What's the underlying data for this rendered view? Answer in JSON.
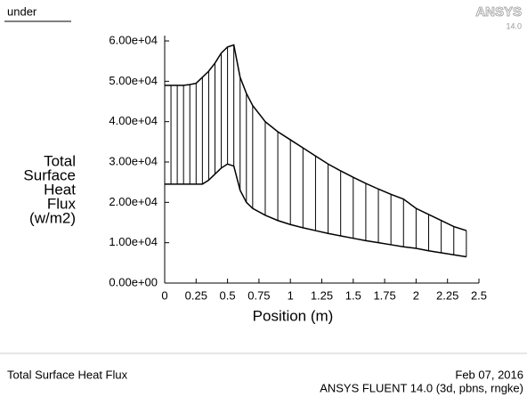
{
  "chart_data": {
    "type": "hatched-band",
    "brand": "ANSYS",
    "version": "14.0",
    "footer_title": "Total Surface Heat Flux",
    "footer_date": "Feb 07, 2016",
    "footer_solver": "ANSYS FLUENT 14.0 (3d, pbns, rngke)",
    "xlabel": "Position (m)",
    "ylabel": [
      "Total",
      "Surface",
      "Heat",
      "Flux",
      "(w/m2)"
    ],
    "color": "#000000",
    "x": [
      0,
      0.05,
      0.1,
      0.15,
      0.2,
      0.25,
      0.3,
      0.35,
      0.4,
      0.45,
      0.5,
      0.55,
      0.6,
      0.65,
      0.7,
      0.8,
      0.9,
      1.0,
      1.1,
      1.2,
      1.3,
      1.4,
      1.5,
      1.6,
      1.7,
      1.8,
      1.9,
      2.0,
      2.1,
      2.2,
      2.3,
      2.4
    ],
    "series": [
      {
        "name": "under",
        "values": [
          49000,
          49000,
          49000,
          49000,
          49200,
          49500,
          51000,
          52500,
          54500,
          57000,
          58500,
          59000,
          51000,
          47000,
          44000,
          40000,
          37500,
          35500,
          33500,
          31500,
          29500,
          27800,
          26200,
          24700,
          23300,
          22000,
          20800,
          18500,
          17000,
          15500,
          14000,
          13000
        ]
      },
      {
        "values": [
          24500,
          24500,
          24500,
          24500,
          24500,
          24500,
          24500,
          25500,
          27000,
          28500,
          29500,
          29000,
          23000,
          20000,
          18500,
          16800,
          15500,
          14500,
          13700,
          13000,
          12300,
          11700,
          11100,
          10500,
          10000,
          9500,
          9000,
          8600,
          8000,
          7500,
          7000,
          6500
        ]
      }
    ],
    "xlim": [
      0,
      2.5
    ],
    "xticks": [
      0,
      0.25,
      0.5,
      0.75,
      1,
      1.25,
      1.5,
      1.75,
      2,
      2.25,
      2.5
    ],
    "ylim": [
      0,
      60000
    ],
    "yticks": [
      {
        "value": 0,
        "label": "0.00e+00"
      },
      {
        "value": 10000,
        "label": "1.00e+04"
      },
      {
        "value": 20000,
        "label": "2.00e+04"
      },
      {
        "value": 30000,
        "label": "3.00e+04"
      },
      {
        "value": 40000,
        "label": "4.00e+04"
      },
      {
        "value": 50000,
        "label": "5.00e+04"
      },
      {
        "value": 60000,
        "label": "6.00e+04"
      }
    ]
  }
}
